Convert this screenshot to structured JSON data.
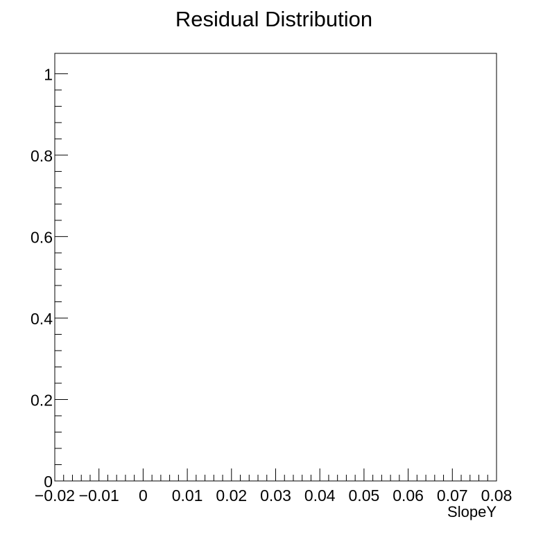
{
  "chart_data": {
    "type": "bar",
    "title": "Residual Distribution",
    "xlabel": "SlopeY",
    "ylabel": "",
    "xlim": [
      -0.02,
      0.08
    ],
    "ylim": [
      0,
      1.05
    ],
    "x_ticks": [
      -0.02,
      -0.01,
      0,
      0.01,
      0.02,
      0.03,
      0.04,
      0.05,
      0.06,
      0.07,
      0.08
    ],
    "x_tick_labels": [
      "−0.02",
      "−0.01",
      "0",
      "0.01",
      "0.02",
      "0.03",
      "0.04",
      "0.05",
      "0.06",
      "0.07",
      "0.08"
    ],
    "y_ticks": [
      0,
      0.2,
      0.4,
      0.6,
      0.8,
      1
    ],
    "y_tick_labels": [
      "0",
      "0.2",
      "0.4",
      "0.6",
      "0.8",
      "1"
    ],
    "grid": false,
    "series": [
      {
        "values": []
      }
    ]
  }
}
